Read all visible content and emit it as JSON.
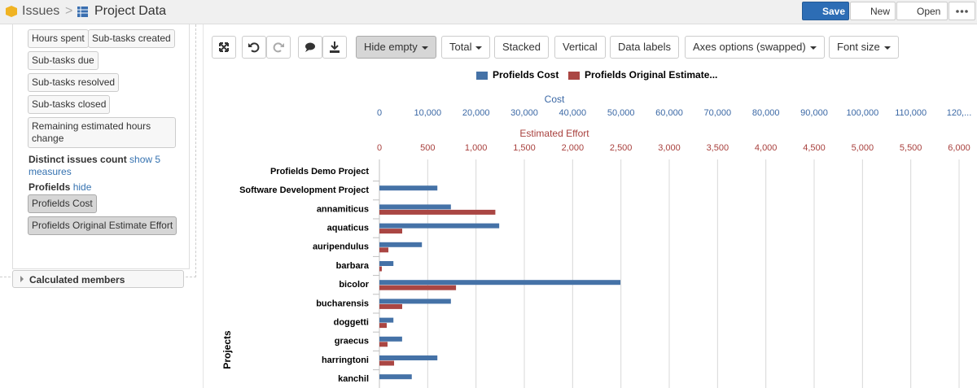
{
  "header": {
    "breadcrumb": [
      "Issues",
      "Project Data"
    ],
    "buttons": [
      "Save",
      "New",
      "Open"
    ]
  },
  "sidebar": {
    "measures": [
      "Hours spent",
      "Sub-tasks created",
      "Sub-tasks due",
      "Sub-tasks resolved",
      "Sub-tasks closed",
      "Remaining estimated hours change"
    ],
    "distinct": "Distinct issues count",
    "distinct_link": "show 5 measures",
    "profields": "Profields",
    "profields_link": "hide",
    "profields_items": [
      "Profields Cost",
      "Profields Original Estimate Effort"
    ],
    "calculated": "Calculated members"
  },
  "toolbar": [
    "Hide empty",
    "Total",
    "Stacked",
    "Vertical",
    "Data labels",
    "Axes options (swapped)",
    "Font size"
  ],
  "chart_data": {
    "type": "bar",
    "orientation": "horizontal",
    "categories": [
      "Profields Demo Project",
      "Software Development Project",
      "annamiticus",
      "aquaticus",
      "auripendulus",
      "barbara",
      "bicolor",
      "bucharensis",
      "doggetti",
      "graecus",
      "harringtoni",
      "kanchil"
    ],
    "series": [
      {
        "name": "Profields Cost",
        "color": "#4572a7",
        "axis": "x",
        "values": [
          null,
          12000,
          14800,
          24800,
          8800,
          2900,
          49900,
          14800,
          2900,
          4700,
          12000,
          6700
        ]
      },
      {
        "name": "Profields Original Estimate...",
        "color": "#aa4643",
        "axis": "x2",
        "values": [
          null,
          null,
          1200,
          236,
          93,
          25,
          793,
          236,
          76,
          84,
          152,
          null
        ]
      }
    ],
    "xlabel": "Cost",
    "x2label": "Estimated Effort",
    "ylabel": "Projects",
    "xlim": [
      0,
      120000
    ],
    "xticks": [
      0,
      {
        "value": 10000,
        "label": "10,000"
      },
      {
        "value": 20000,
        "label": "20,000"
      },
      {
        "value": 30000,
        "label": "30,000"
      },
      {
        "value": 40000,
        "label": "40,000"
      },
      {
        "value": 50000,
        "label": "50,000"
      },
      {
        "value": 60000,
        "label": "60,000"
      },
      {
        "value": 70000,
        "label": "70,000"
      },
      {
        "value": 80000,
        "label": "80,000"
      },
      {
        "value": 90000,
        "label": "90,000"
      },
      {
        "value": 100000,
        "label": "100,000"
      },
      {
        "value": 110000,
        "label": "110,000"
      },
      {
        "value": 120000,
        "label": "120,..."
      }
    ],
    "x2lim": [
      0,
      6000
    ],
    "x2ticks": [
      0,
      500,
      {
        "value": 1000,
        "label": "1,000"
      },
      {
        "value": 1500,
        "label": "1,500"
      },
      {
        "value": 2000,
        "label": "2,000"
      },
      {
        "value": 2500,
        "label": "2,500"
      },
      {
        "value": 3000,
        "label": "3,000"
      },
      {
        "value": 3500,
        "label": "3,500"
      },
      {
        "value": 4000,
        "label": "4,000"
      },
      {
        "value": 4500,
        "label": "4,500"
      },
      {
        "value": 5000,
        "label": "5,000"
      },
      {
        "value": 5500,
        "label": "5,500"
      },
      {
        "value": 6000,
        "label": "6,000"
      }
    ],
    "grid": true,
    "legend": "top"
  }
}
